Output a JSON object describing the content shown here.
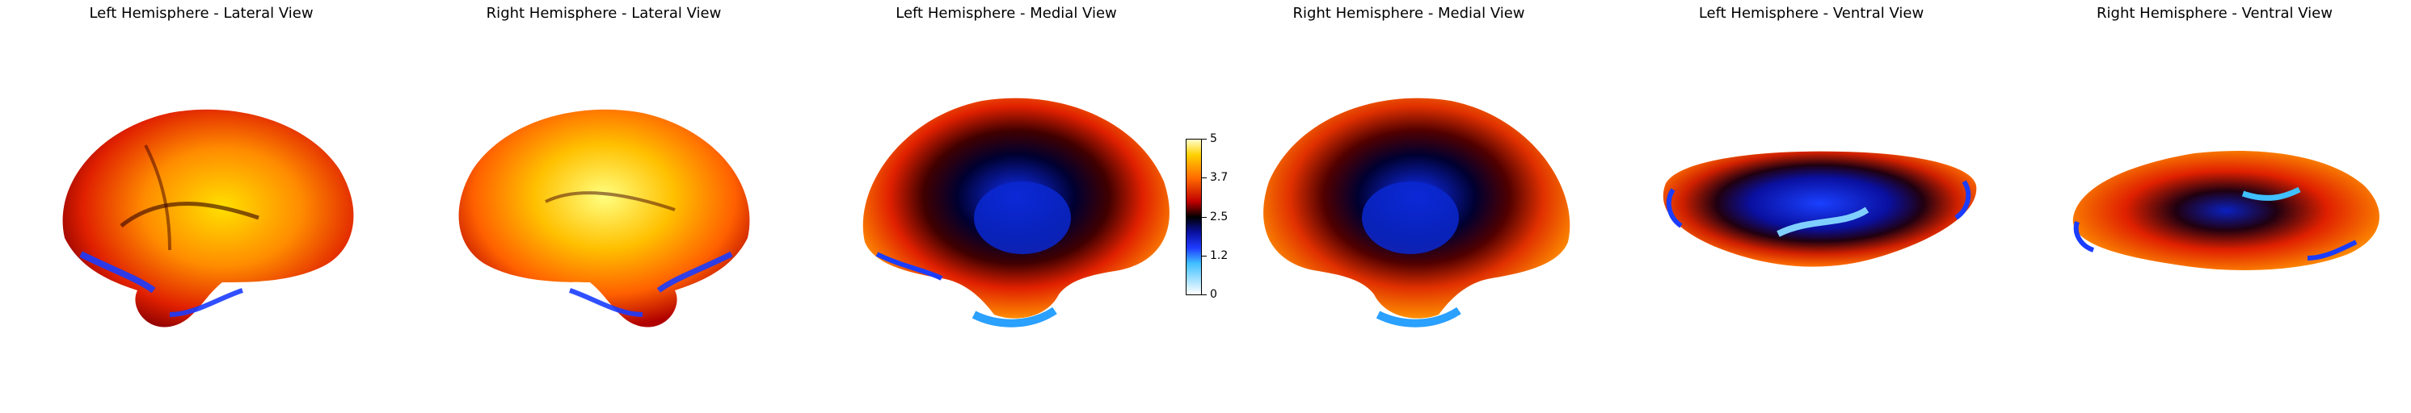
{
  "panels": [
    {
      "title": "Left Hemisphere - Lateral View"
    },
    {
      "title": "Right Hemisphere - Lateral View"
    },
    {
      "title": "Left Hemisphere - Medial View"
    },
    {
      "title": "Right Hemisphere - Medial View"
    },
    {
      "title": "Left Hemisphere - Ventral View"
    },
    {
      "title": "Right Hemisphere - Ventral View"
    }
  ],
  "colorbar": {
    "ticks": [
      "5",
      "3.7",
      "2.5",
      "1.2",
      "0"
    ],
    "colors": {
      "high": "#ffffcc",
      "mid_high": "#ff6a00",
      "mid": "#000000",
      "low": "#1e3cff",
      "bottom": "#ffffff"
    }
  }
}
